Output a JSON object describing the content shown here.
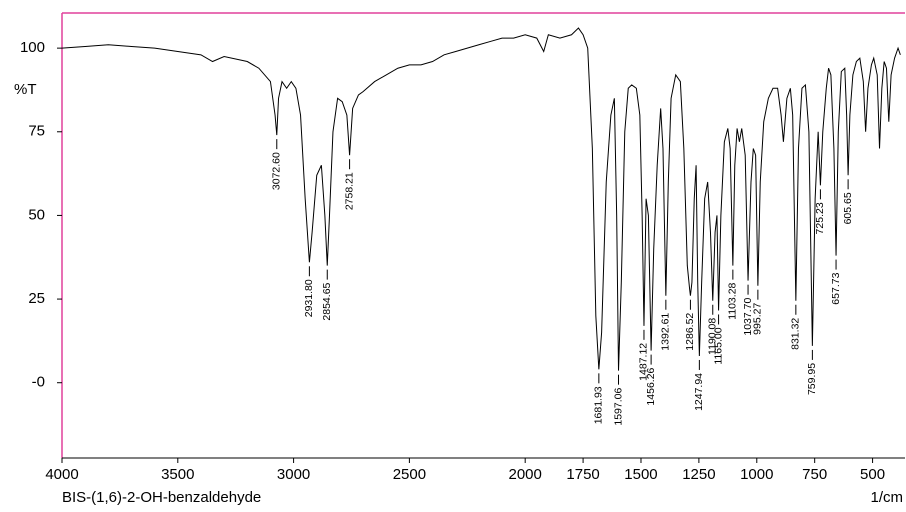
{
  "chart_data": {
    "type": "line",
    "title": "BIS-(1,6)-2-OH-benzaldehyde",
    "x_label": "1/cm",
    "y_label": "%T",
    "xlim": [
      4000,
      360
    ],
    "ylim": [
      -22.5,
      110.5
    ],
    "xticks": [
      4000,
      3500,
      3000,
      2500,
      2000,
      1750,
      1500,
      1250,
      1000,
      750,
      500
    ],
    "yticks": [
      100,
      75,
      50,
      25,
      {
        "value": 0,
        "label": "-0"
      }
    ],
    "color": "#000000",
    "frame_color": "#e0409c",
    "x": [
      4000,
      3900,
      3800,
      3700,
      3600,
      3500,
      3400,
      3350,
      3300,
      3200,
      3150,
      3100,
      3080,
      3072.6,
      3065,
      3050,
      3030,
      3010,
      2990,
      2970,
      2950,
      2931.8,
      2920,
      2900,
      2880,
      2865,
      2854.65,
      2845,
      2830,
      2810,
      2790,
      2770,
      2758.21,
      2745,
      2720,
      2700,
      2650,
      2600,
      2550,
      2500,
      2450,
      2400,
      2350,
      2300,
      2250,
      2200,
      2150,
      2100,
      2050,
      2000,
      1950,
      1920,
      1900,
      1850,
      1800,
      1770,
      1750,
      1730,
      1710,
      1695,
      1681.93,
      1670,
      1650,
      1630,
      1615,
      1605,
      1597.06,
      1585,
      1570,
      1555,
      1540,
      1520,
      1505,
      1495,
      1487.12,
      1478,
      1468,
      1456.26,
      1445,
      1430,
      1415,
      1405,
      1392.61,
      1382,
      1370,
      1350,
      1330,
      1315,
      1300,
      1290,
      1286.52,
      1280,
      1270,
      1262,
      1255,
      1247.94,
      1238,
      1225,
      1212,
      1200,
      1190.08,
      1180,
      1172,
      1165,
      1155,
      1140,
      1125,
      1115,
      1103.28,
      1095,
      1085,
      1075,
      1065,
      1050,
      1037.7,
      1025,
      1015,
      1005,
      995.27,
      985,
      970,
      950,
      930,
      910,
      895,
      885,
      870,
      855,
      845,
      831.32,
      820,
      805,
      790,
      775,
      759.95,
      748,
      735,
      725.23,
      715,
      700,
      690,
      680,
      667,
      657.73,
      648,
      635,
      620,
      612,
      605.65,
      598,
      585,
      570,
      555,
      540,
      530,
      520,
      505,
      495,
      480,
      470,
      460,
      450,
      440,
      430,
      420,
      405,
      390,
      380
    ],
    "values": [
      100,
      100.5,
      101,
      100.5,
      100,
      99,
      98,
      96,
      97.5,
      96,
      94,
      90,
      80,
      74,
      85,
      90,
      88,
      90,
      88,
      80,
      55,
      36,
      45,
      62,
      65,
      50,
      35,
      50,
      75,
      85,
      84,
      80,
      68,
      82,
      86,
      87,
      90,
      92,
      94,
      95,
      95,
      96,
      98,
      99,
      100,
      101,
      102,
      103,
      103,
      104,
      103,
      99,
      104,
      103,
      104,
      106,
      104,
      100,
      70,
      20,
      4,
      15,
      60,
      80,
      85,
      50,
      3.6,
      30,
      75,
      88,
      89,
      88,
      80,
      50,
      17,
      55,
      50,
      9.6,
      40,
      65,
      82,
      70,
      26,
      60,
      85,
      92,
      90,
      70,
      35,
      28,
      26,
      30,
      55,
      65,
      30,
      8,
      30,
      55,
      60,
      45,
      24.5,
      45,
      50,
      21.6,
      50,
      72,
      76,
      70,
      35,
      65,
      76,
      72,
      76,
      68,
      30.5,
      60,
      70,
      68,
      29,
      60,
      78,
      85,
      88,
      88,
      80,
      72,
      85,
      88,
      80,
      24.5,
      70,
      88,
      89,
      75,
      11,
      55,
      75,
      59,
      75,
      88,
      94,
      92,
      70,
      38,
      75,
      93,
      94,
      80,
      62,
      80,
      92,
      96,
      97,
      90,
      75,
      88,
      95,
      97,
      92,
      70,
      88,
      96,
      94,
      78,
      92,
      97,
      100,
      98
    ],
    "peaks": {
      "x": [
        3072.6,
        2931.8,
        2854.65,
        2758.21,
        1681.93,
        1597.06,
        1487.12,
        1456.26,
        1392.61,
        1286.52,
        1247.94,
        1190.08,
        1165,
        1103.28,
        1037.7,
        995.27,
        831.32,
        759.95,
        725.23,
        657.73,
        605.65
      ],
      "values": [
        74,
        36,
        35,
        68,
        4,
        3.6,
        17,
        9.6,
        26,
        26,
        8,
        24.5,
        21.6,
        35,
        30.5,
        29,
        24.5,
        11,
        59,
        38,
        62
      ],
      "value_labels": [
        "3072.60",
        "2931.80",
        "2854.65",
        "2758.21",
        "1681.93",
        "1597.06",
        "1487.12",
        "1456.26",
        "1392.61",
        "1286.52",
        "1247.94",
        "1190.08",
        "1165.00",
        "1103.28",
        "1037.70",
        "995.27",
        "831.32",
        "759.95",
        "725.23",
        "657.73",
        "605.65"
      ]
    }
  }
}
